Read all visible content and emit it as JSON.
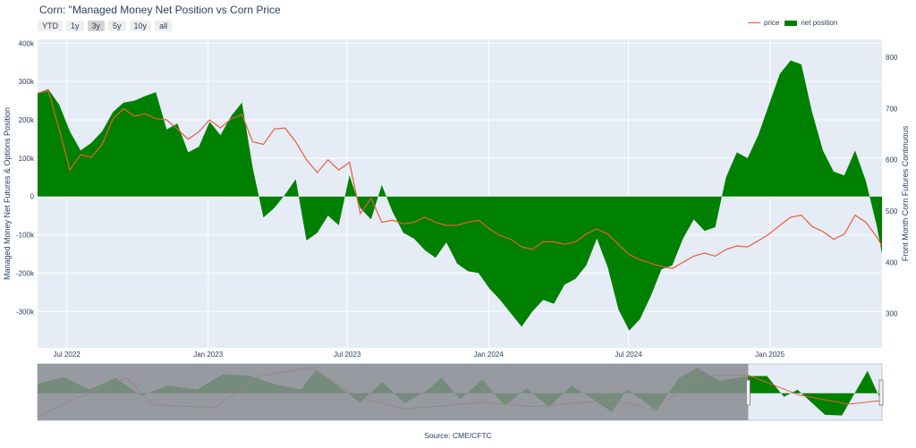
{
  "title": "Corn: \"Managed Money Net Position vs Corn Price",
  "range_buttons": [
    "YTD",
    "1y",
    "3y",
    "5y",
    "10y",
    "all"
  ],
  "active_range": "3y",
  "legend": {
    "price": "price",
    "net": "net position"
  },
  "source": "Source: CME/CFTC",
  "colors": {
    "price": "#ea5b3c",
    "net": "#008000",
    "plot_bg": "#e5ecf6",
    "mask": "#8a8d92"
  },
  "chart_data": {
    "type": "area",
    "ylabel_left": "Managed Money Net Futures & Options Position",
    "ylabel_right": "Front Month Corn Futures Continuous",
    "y_left_ticks": [
      400000,
      300000,
      200000,
      100000,
      0,
      -100000,
      -200000,
      -300000
    ],
    "y_left_tick_labels": [
      "400k",
      "300k",
      "200k",
      "100k",
      "0",
      "-100k",
      "-200k",
      "-300k"
    ],
    "y_right_ticks": [
      800,
      700,
      600,
      500,
      400,
      300
    ],
    "x_ticks": [
      "Jul 2022",
      "Jan 2023",
      "Jul 2023",
      "Jan 2024",
      "Jul 2024",
      "Jan 2025"
    ],
    "x_tick_dates": [
      "2022-07-01",
      "2023-01-01",
      "2023-07-01",
      "2024-01-01",
      "2024-07-01",
      "2025-01-01"
    ],
    "xlim": [
      "2022-05-24",
      "2025-05-27"
    ],
    "ylim_left": [
      -395000,
      410000
    ],
    "ylim_right": [
      233,
      835
    ],
    "grid": true,
    "legend_position": "top-right",
    "series": [
      {
        "name": "net position",
        "points": [
          [
            "2022-05-24",
            270000
          ],
          [
            "2022-06-07",
            280000
          ],
          [
            "2022-06-21",
            240000
          ],
          [
            "2022-07-05",
            170000
          ],
          [
            "2022-07-19",
            120000
          ],
          [
            "2022-08-02",
            140000
          ],
          [
            "2022-08-16",
            170000
          ],
          [
            "2022-08-30",
            220000
          ],
          [
            "2022-09-13",
            245000
          ],
          [
            "2022-09-27",
            250000
          ],
          [
            "2022-10-11",
            262000
          ],
          [
            "2022-10-25",
            272000
          ],
          [
            "2022-11-08",
            175000
          ],
          [
            "2022-11-22",
            190000
          ],
          [
            "2022-12-06",
            115000
          ],
          [
            "2022-12-20",
            130000
          ],
          [
            "2023-01-03",
            195000
          ],
          [
            "2023-01-17",
            160000
          ],
          [
            "2023-01-31",
            210000
          ],
          [
            "2023-02-14",
            245000
          ],
          [
            "2023-02-28",
            75000
          ],
          [
            "2023-03-14",
            -55000
          ],
          [
            "2023-03-28",
            -30000
          ],
          [
            "2023-04-11",
            5000
          ],
          [
            "2023-04-25",
            45000
          ],
          [
            "2023-05-09",
            -115000
          ],
          [
            "2023-05-23",
            -95000
          ],
          [
            "2023-06-06",
            -50000
          ],
          [
            "2023-06-20",
            -75000
          ],
          [
            "2023-07-04",
            55000
          ],
          [
            "2023-07-18",
            -30000
          ],
          [
            "2023-08-01",
            -60000
          ],
          [
            "2023-08-15",
            30000
          ],
          [
            "2023-08-29",
            -40000
          ],
          [
            "2023-09-12",
            -95000
          ],
          [
            "2023-09-26",
            -110000
          ],
          [
            "2023-10-10",
            -140000
          ],
          [
            "2023-10-24",
            -160000
          ],
          [
            "2023-11-07",
            -120000
          ],
          [
            "2023-11-21",
            -175000
          ],
          [
            "2023-12-05",
            -195000
          ],
          [
            "2023-12-19",
            -200000
          ],
          [
            "2024-01-02",
            -240000
          ],
          [
            "2024-01-16",
            -270000
          ],
          [
            "2024-01-30",
            -305000
          ],
          [
            "2024-02-13",
            -340000
          ],
          [
            "2024-02-27",
            -300000
          ],
          [
            "2024-03-12",
            -270000
          ],
          [
            "2024-03-26",
            -280000
          ],
          [
            "2024-04-09",
            -230000
          ],
          [
            "2024-04-23",
            -215000
          ],
          [
            "2024-05-07",
            -180000
          ],
          [
            "2024-05-21",
            -110000
          ],
          [
            "2024-06-04",
            -185000
          ],
          [
            "2024-06-18",
            -295000
          ],
          [
            "2024-07-02",
            -350000
          ],
          [
            "2024-07-16",
            -320000
          ],
          [
            "2024-07-30",
            -260000
          ],
          [
            "2024-08-13",
            -190000
          ],
          [
            "2024-08-27",
            -180000
          ],
          [
            "2024-09-10",
            -110000
          ],
          [
            "2024-09-24",
            -60000
          ],
          [
            "2024-10-08",
            -90000
          ],
          [
            "2024-10-22",
            -80000
          ],
          [
            "2024-11-05",
            50000
          ],
          [
            "2024-11-19",
            115000
          ],
          [
            "2024-12-03",
            100000
          ],
          [
            "2024-12-17",
            160000
          ],
          [
            "2024-12-31",
            240000
          ],
          [
            "2025-01-14",
            320000
          ],
          [
            "2025-01-28",
            355000
          ],
          [
            "2025-02-11",
            345000
          ],
          [
            "2025-02-25",
            220000
          ],
          [
            "2025-03-11",
            120000
          ],
          [
            "2025-03-25",
            65000
          ],
          [
            "2025-04-08",
            55000
          ],
          [
            "2025-04-22",
            120000
          ],
          [
            "2025-05-06",
            40000
          ],
          [
            "2025-05-20",
            -75000
          ],
          [
            "2025-05-27",
            -150000
          ]
        ]
      },
      {
        "name": "price",
        "points": [
          [
            "2022-05-24",
            730
          ],
          [
            "2022-06-07",
            735
          ],
          [
            "2022-06-21",
            660
          ],
          [
            "2022-07-05",
            580
          ],
          [
            "2022-07-19",
            610
          ],
          [
            "2022-08-02",
            605
          ],
          [
            "2022-08-16",
            630
          ],
          [
            "2022-08-30",
            680
          ],
          [
            "2022-09-13",
            700
          ],
          [
            "2022-09-27",
            685
          ],
          [
            "2022-10-11",
            690
          ],
          [
            "2022-10-25",
            680
          ],
          [
            "2022-11-08",
            678
          ],
          [
            "2022-11-22",
            660
          ],
          [
            "2022-12-06",
            640
          ],
          [
            "2022-12-20",
            655
          ],
          [
            "2023-01-03",
            678
          ],
          [
            "2023-01-17",
            662
          ],
          [
            "2023-01-31",
            680
          ],
          [
            "2023-02-14",
            688
          ],
          [
            "2023-02-28",
            635
          ],
          [
            "2023-03-14",
            630
          ],
          [
            "2023-03-28",
            660
          ],
          [
            "2023-04-11",
            662
          ],
          [
            "2023-04-25",
            635
          ],
          [
            "2023-05-09",
            600
          ],
          [
            "2023-05-23",
            575
          ],
          [
            "2023-06-06",
            600
          ],
          [
            "2023-06-20",
            580
          ],
          [
            "2023-07-04",
            595
          ],
          [
            "2023-07-18",
            495
          ],
          [
            "2023-08-01",
            525
          ],
          [
            "2023-08-15",
            478
          ],
          [
            "2023-08-29",
            482
          ],
          [
            "2023-09-12",
            475
          ],
          [
            "2023-09-26",
            478
          ],
          [
            "2023-10-10",
            488
          ],
          [
            "2023-10-24",
            478
          ],
          [
            "2023-11-07",
            472
          ],
          [
            "2023-11-21",
            472
          ],
          [
            "2023-12-05",
            478
          ],
          [
            "2023-12-19",
            482
          ],
          [
            "2024-01-02",
            465
          ],
          [
            "2024-01-16",
            452
          ],
          [
            "2024-01-30",
            445
          ],
          [
            "2024-02-13",
            430
          ],
          [
            "2024-02-27",
            425
          ],
          [
            "2024-03-12",
            440
          ],
          [
            "2024-03-26",
            440
          ],
          [
            "2024-04-09",
            435
          ],
          [
            "2024-04-23",
            440
          ],
          [
            "2024-05-07",
            455
          ],
          [
            "2024-05-21",
            465
          ],
          [
            "2024-06-04",
            455
          ],
          [
            "2024-06-18",
            435
          ],
          [
            "2024-07-02",
            415
          ],
          [
            "2024-07-16",
            405
          ],
          [
            "2024-07-30",
            398
          ],
          [
            "2024-08-13",
            392
          ],
          [
            "2024-08-27",
            388
          ],
          [
            "2024-09-10",
            400
          ],
          [
            "2024-09-24",
            412
          ],
          [
            "2024-10-08",
            418
          ],
          [
            "2024-10-22",
            412
          ],
          [
            "2024-11-05",
            425
          ],
          [
            "2024-11-19",
            432
          ],
          [
            "2024-12-03",
            430
          ],
          [
            "2024-12-17",
            442
          ],
          [
            "2024-12-31",
            455
          ],
          [
            "2025-01-14",
            472
          ],
          [
            "2025-01-28",
            488
          ],
          [
            "2025-02-11",
            492
          ],
          [
            "2025-02-25",
            470
          ],
          [
            "2025-03-11",
            460
          ],
          [
            "2025-03-25",
            445
          ],
          [
            "2025-04-08",
            455
          ],
          [
            "2025-04-22",
            492
          ],
          [
            "2025-05-06",
            478
          ],
          [
            "2025-05-20",
            450
          ],
          [
            "2025-05-27",
            432
          ]
        ]
      }
    ],
    "rangeslider": {
      "full_range": [
        "2006-06-01",
        "2025-05-27"
      ],
      "selected_range": [
        "2022-05-24",
        "2025-05-27"
      ],
      "net_points": [
        [
          "2006-06-01",
          150000
        ],
        [
          "2007-01-01",
          250000
        ],
        [
          "2007-08-01",
          60000
        ],
        [
          "2008-03-01",
          240000
        ],
        [
          "2008-10-01",
          -40000
        ],
        [
          "2009-05-01",
          120000
        ],
        [
          "2010-01-01",
          60000
        ],
        [
          "2010-08-01",
          300000
        ],
        [
          "2011-03-01",
          280000
        ],
        [
          "2011-10-01",
          140000
        ],
        [
          "2012-05-01",
          60000
        ],
        [
          "2012-09-01",
          360000
        ],
        [
          "2013-03-01",
          120000
        ],
        [
          "2013-09-01",
          -150000
        ],
        [
          "2014-03-01",
          180000
        ],
        [
          "2014-09-01",
          -160000
        ],
        [
          "2015-03-01",
          40000
        ],
        [
          "2015-07-01",
          250000
        ],
        [
          "2015-12-01",
          -100000
        ],
        [
          "2016-06-01",
          220000
        ],
        [
          "2016-12-01",
          -200000
        ],
        [
          "2017-06-01",
          80000
        ],
        [
          "2017-12-01",
          -220000
        ],
        [
          "2018-06-01",
          120000
        ],
        [
          "2018-12-01",
          -100000
        ],
        [
          "2019-05-01",
          -300000
        ],
        [
          "2019-09-01",
          60000
        ],
        [
          "2020-01-01",
          -100000
        ],
        [
          "2020-05-01",
          -280000
        ],
        [
          "2020-11-01",
          240000
        ],
        [
          "2021-04-01",
          400000
        ],
        [
          "2021-10-01",
          200000
        ],
        [
          "2022-05-24",
          270000
        ],
        [
          "2022-10-25",
          272000
        ],
        [
          "2023-03-14",
          -55000
        ],
        [
          "2023-07-04",
          55000
        ],
        [
          "2024-02-13",
          -340000
        ],
        [
          "2024-07-02",
          -350000
        ],
        [
          "2025-01-28",
          355000
        ],
        [
          "2025-05-27",
          -150000
        ]
      ],
      "price_points": [
        [
          "2006-06-01",
          240
        ],
        [
          "2007-02-01",
          410
        ],
        [
          "2008-06-01",
          700
        ],
        [
          "2009-01-01",
          380
        ],
        [
          "2010-06-01",
          350
        ],
        [
          "2011-06-01",
          720
        ],
        [
          "2012-08-01",
          820
        ],
        [
          "2013-08-01",
          480
        ],
        [
          "2014-09-01",
          330
        ],
        [
          "2016-06-01",
          410
        ],
        [
          "2017-08-01",
          360
        ],
        [
          "2019-06-01",
          440
        ],
        [
          "2020-04-01",
          320
        ],
        [
          "2021-05-01",
          720
        ],
        [
          "2022-05-24",
          730
        ],
        [
          "2023-07-18",
          495
        ],
        [
          "2024-08-27",
          388
        ],
        [
          "2025-05-27",
          432
        ]
      ]
    }
  }
}
